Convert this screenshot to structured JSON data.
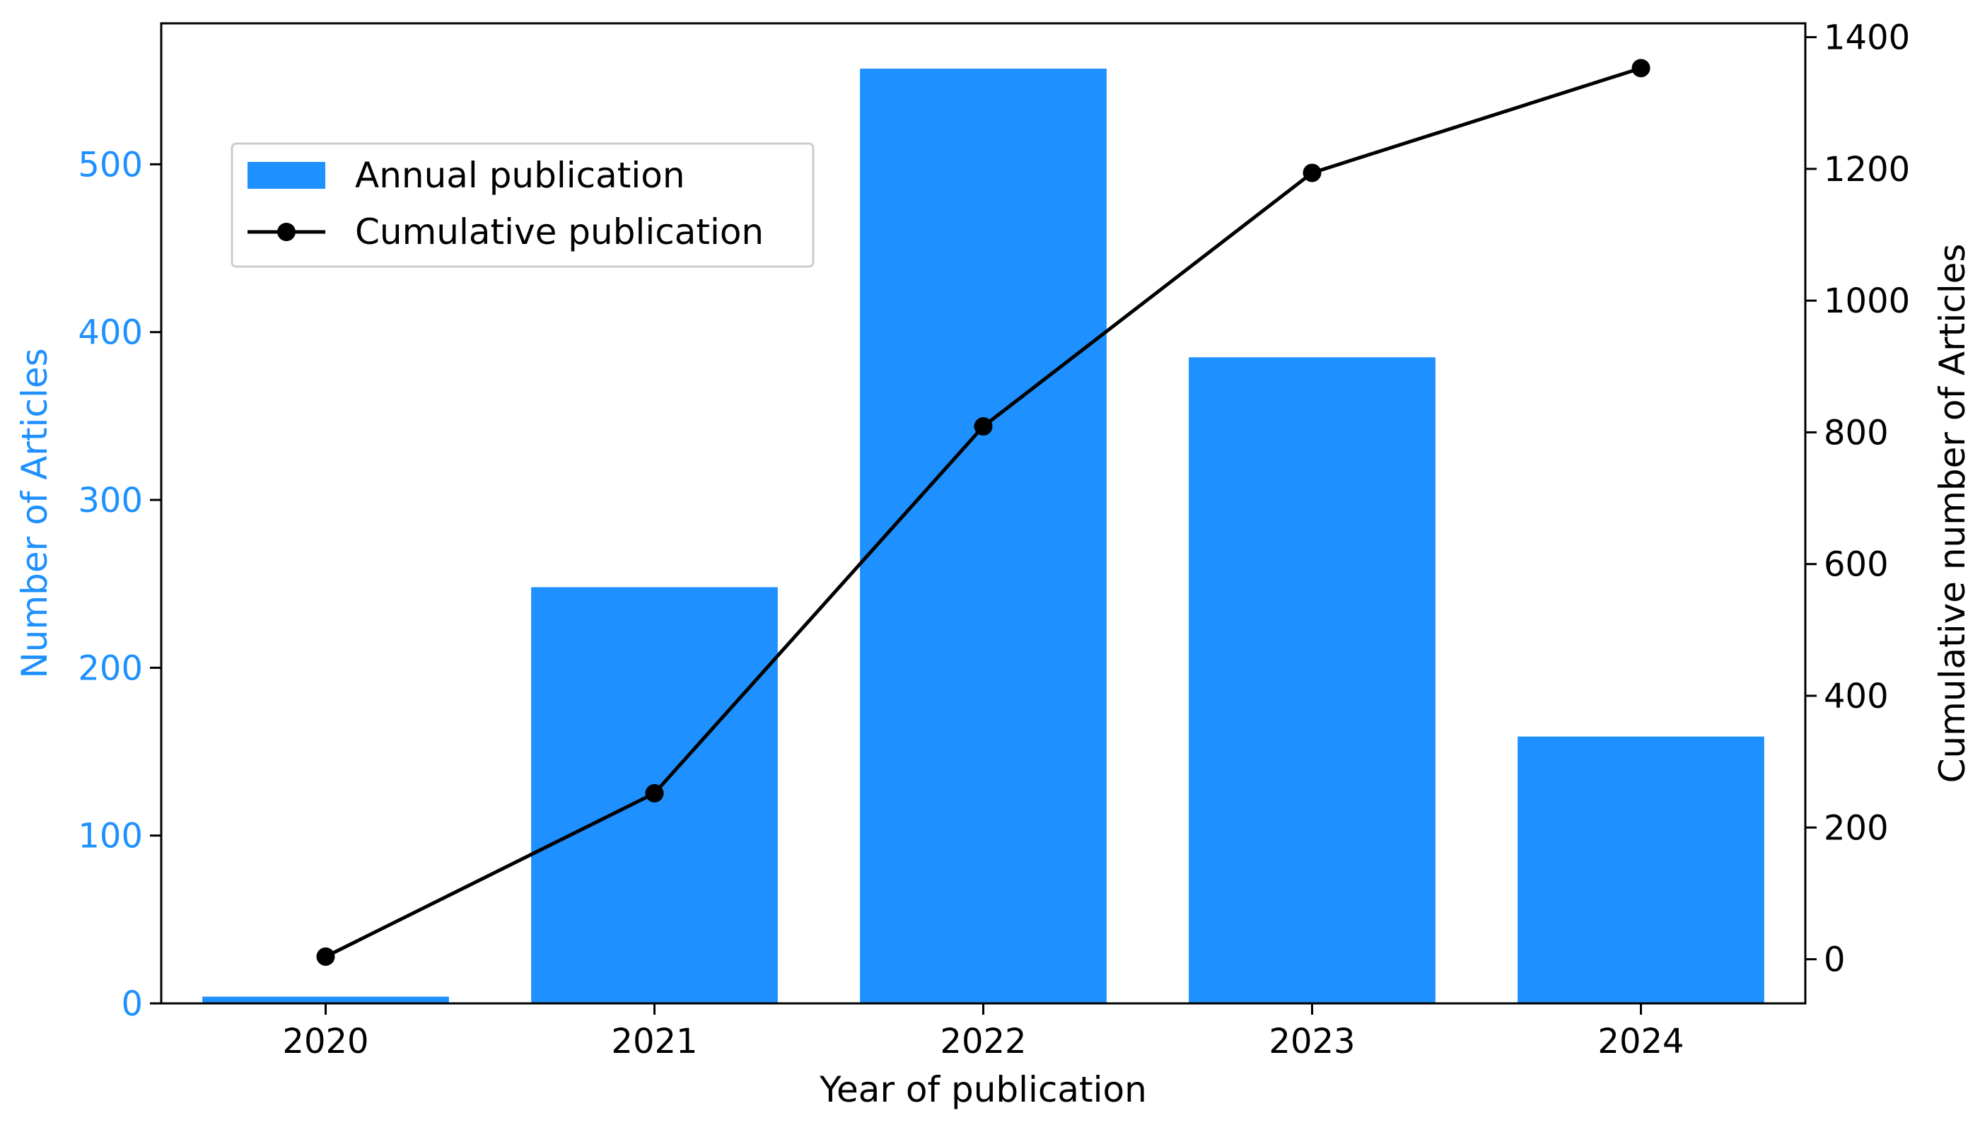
{
  "chart_data": {
    "type": "bar",
    "categories": [
      "2020",
      "2021",
      "2022",
      "2023",
      "2024"
    ],
    "series": [
      {
        "name": "Annual publication",
        "type": "bar",
        "axis": "left",
        "color": "#1e90ff",
        "values": [
          4,
          248,
          557,
          385,
          159
        ]
      },
      {
        "name": "Cumulative publication",
        "type": "line",
        "axis": "right",
        "color": "#000000",
        "marker": "circle",
        "values": [
          4,
          252,
          809,
          1194,
          1353
        ]
      }
    ],
    "xlabel": "Year of publication",
    "ylabel": "Number of Articles",
    "ylabel_color": "#1e90ff",
    "y2label": "Cumulative number of Articles",
    "ylim": [
      0,
      584
    ],
    "y2lim": [
      -67,
      1421
    ],
    "yticks": [
      "0",
      "100",
      "200",
      "300",
      "400",
      "500"
    ],
    "y2ticks": [
      "0",
      "200",
      "400",
      "600",
      "800",
      "1000",
      "1200",
      "1400"
    ],
    "grid": false,
    "legend_position": "upper-left"
  }
}
